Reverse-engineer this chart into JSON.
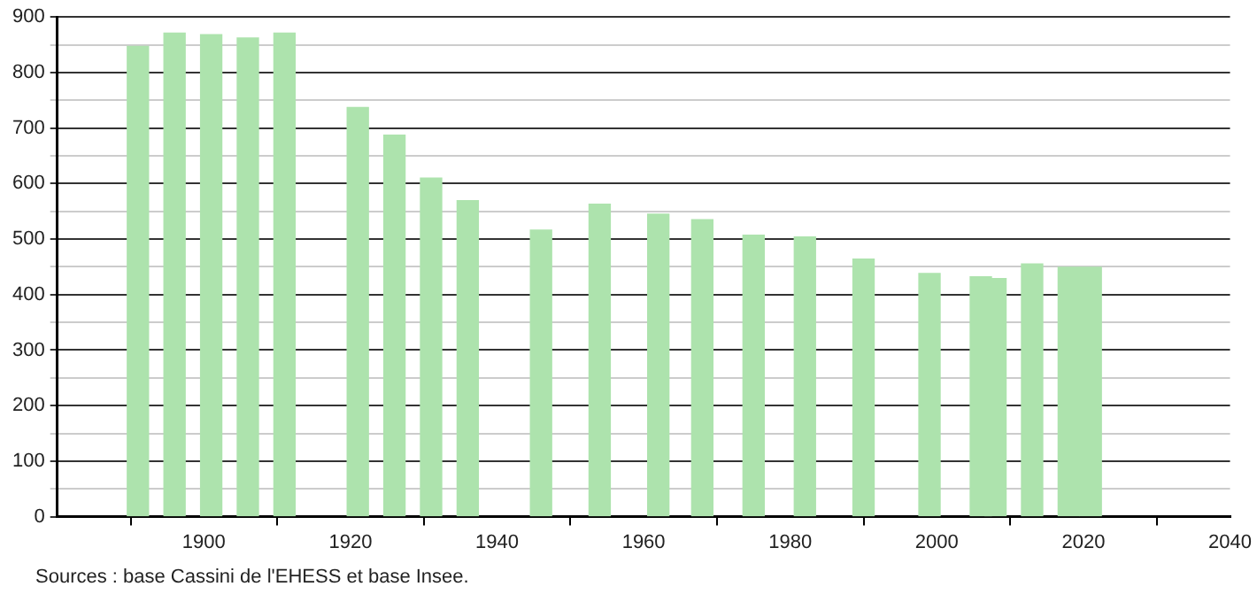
{
  "chart_data": {
    "type": "bar",
    "x": [
      1891,
      1896,
      1901,
      1906,
      1911,
      1921,
      1926,
      1931,
      1936,
      1946,
      1954,
      1962,
      1968,
      1975,
      1982,
      1990,
      1999,
      2006,
      2008,
      2013,
      2018,
      2021
    ],
    "values": [
      847,
      871,
      868,
      862,
      871,
      737,
      687,
      610,
      569,
      516,
      563,
      545,
      535,
      507,
      504,
      464,
      438,
      432,
      429,
      455,
      449,
      449
    ],
    "color": "#ade3ad",
    "xlim": [
      1880,
      2040
    ],
    "xticks": [
      1900,
      1920,
      1940,
      1960,
      1980,
      2000,
      2020,
      2040
    ],
    "ylim": [
      0,
      900
    ],
    "yticks": [
      0,
      {
        "value": 50,
        "label": null
      },
      100,
      {
        "value": 150,
        "label": null
      },
      200,
      {
        "value": 250,
        "label": null
      },
      300,
      {
        "value": 350,
        "label": null
      },
      400,
      {
        "value": 450,
        "label": null
      },
      500,
      {
        "value": 550,
        "label": null
      },
      600,
      {
        "value": 650,
        "label": null
      },
      700,
      {
        "value": 750,
        "label": null
      },
      800,
      {
        "value": 850,
        "label": null
      },
      900
    ],
    "grid": "y",
    "legend": false,
    "annotations": [
      "Sources : base Cassini de l'EHESS et base Insee."
    ]
  }
}
